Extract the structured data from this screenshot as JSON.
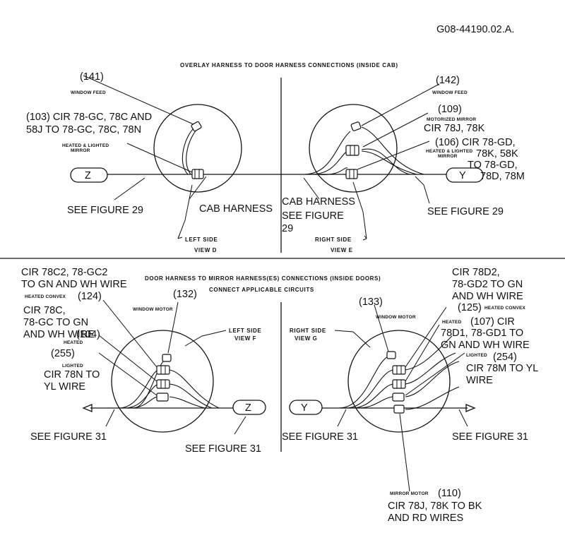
{
  "drawing_id": "G08-44190.02.A.",
  "top": {
    "title": "OVERLAY HARNESS TO DOOR HARNESS CONNECTIONS (INSIDE CAB)",
    "left": {
      "callout_141": "(141)",
      "window_feed": "WINDOW FEED",
      "callout_103_l1": "(103) CIR 78-GC, 78C AND",
      "callout_103_l2": "58J TO 78-GC, 78C, 78N",
      "heated_lighted_l1": "HEATED & LIGHTED",
      "heated_lighted_l2": "MIRROR",
      "marker": "Z",
      "see_figure": "SEE FIGURE 29",
      "cab_harness": "CAB HARNESS",
      "side_l1": "LEFT SIDE",
      "side_l2": "VIEW D"
    },
    "right": {
      "callout_142": "(142)",
      "window_feed": "WINDOW FEED",
      "callout_109": "(109)",
      "motorized_mirror": "MOTORIZED MIRROR",
      "cir_78j": "CIR 78J, 78K",
      "heated_lighted_l1": "HEATED & LIGHTED",
      "heated_lighted_l2": "MIRROR",
      "callout_106_l1": "(106) CIR 78-GD,",
      "callout_106_l2": "78K, 58K",
      "callout_106_l3": "TO 78-GD,",
      "callout_106_l4": "78D, 78M",
      "marker": "Y",
      "cab_harness": "CAB HARNESS",
      "see_figure_l1": "SEE FIGURE",
      "see_figure_l2": "29",
      "see_figure_29": "SEE FIGURE 29",
      "side_l1": "RIGHT SIDE",
      "side_l2": "VIEW E"
    }
  },
  "bottom": {
    "title": "DOOR HARNESS TO MIRROR HARNESS(ES) CONNECTIONS (INSIDE DOORS)",
    "subtitle": "CONNECT APPLICABLE CIRCUITS",
    "left": {
      "cir_78c2_l1": "CIR 78C2, 78-GC2",
      "cir_78c2_l2": "TO GN AND WH WIRE",
      "heated_convex": "HEATED CONVEX",
      "callout_124": "(124)",
      "cir_78c_l1": "CIR 78C,",
      "cir_78c_l2": "78-GC TO GN",
      "cir_78c_l3": "AND WH WIRE",
      "callout_104": "(104)",
      "heated": "HEATED",
      "callout_255": "(255)",
      "lighted": "LIGHTED",
      "cir_78n_l1": "CIR 78N TO",
      "cir_78n_l2": "YL WIRE",
      "callout_132": "(132)",
      "window_motor": "WINDOW MOTOR",
      "side_l1": "LEFT SIDE",
      "side_l2": "VIEW F",
      "marker": "Z",
      "see_figure_31_a": "SEE FIGURE 31",
      "see_figure_31_b": "SEE FIGURE 31"
    },
    "right": {
      "side_l1": "RIGHT SIDE",
      "side_l2": "VIEW G",
      "callout_133": "(133)",
      "window_motor": "WINDOW MOTOR",
      "cir_78d2_l1": "CIR 78D2,",
      "cir_78d2_l2": "78-GD2 TO GN",
      "cir_78d2_l3": "AND WH WIRE",
      "callout_125": "(125)",
      "heated_convex": "HEATED CONVEX",
      "heated": "HEATED",
      "callout_107_l1": "(107) CIR",
      "callout_107_l2": "78D1, 78-GD1 TO",
      "callout_107_l3": "GN AND WH WIRE",
      "lighted": "LIGHTED",
      "callout_254": "(254)",
      "cir_78m_l1": "CIR 78M TO YL",
      "cir_78m_l2": "WIRE",
      "marker": "Y",
      "see_figure_31_a": "SEE FIGURE 31",
      "see_figure_31_b": "SEE FIGURE 31",
      "mirror_motor": "MIRROR MOTOR",
      "callout_110": "(110)",
      "cir_78j_l1": "CIR 78J, 78K TO BK",
      "cir_78j_l2": "AND RD WIRES"
    }
  }
}
